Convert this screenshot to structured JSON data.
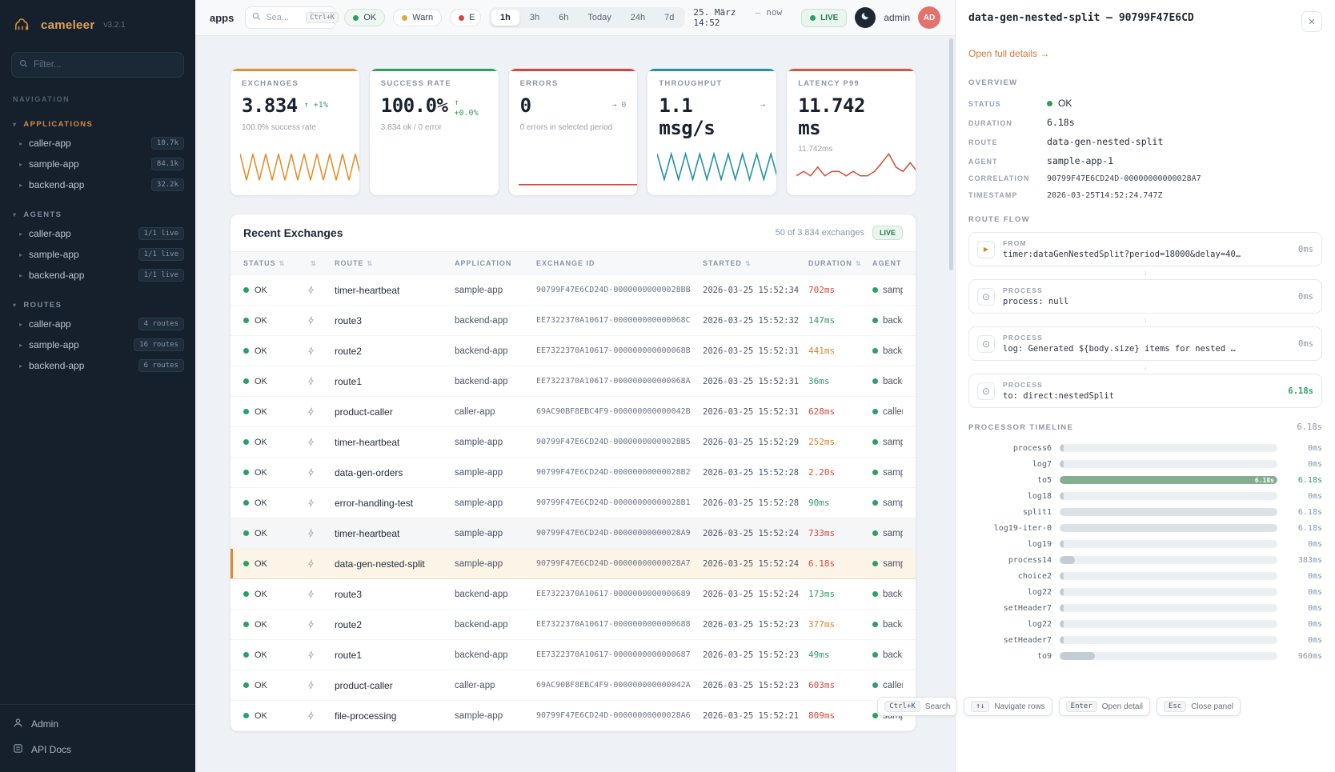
{
  "app": {
    "logo": "cameleer",
    "version": "v3.2.1"
  },
  "colors": {
    "accent": "#d9822b",
    "ok": "#2f9e63",
    "warn": "#dca83f",
    "error": "#d64545",
    "teal": "#2492a5"
  },
  "sidebar": {
    "filter_placeholder": "Filter...",
    "nav_label": "NAVIGATION",
    "applications": {
      "label": "APPLICATIONS",
      "items": [
        {
          "label": "caller-app",
          "badge": "10.7k"
        },
        {
          "label": "sample-app",
          "badge": "84.1k"
        },
        {
          "label": "backend-app",
          "badge": "32.2k"
        }
      ]
    },
    "agents": {
      "label": "AGENTS",
      "items": [
        {
          "label": "caller-app",
          "badge": "1/1 live"
        },
        {
          "label": "sample-app",
          "badge": "1/1 live"
        },
        {
          "label": "backend-app",
          "badge": "1/1 live"
        }
      ]
    },
    "routes": {
      "label": "ROUTES",
      "items": [
        {
          "label": "caller-app",
          "badge": "4 routes"
        },
        {
          "label": "sample-app",
          "badge": "16 routes"
        },
        {
          "label": "backend-app",
          "badge": "6 routes"
        }
      ]
    },
    "footer": {
      "admin": "Admin",
      "api_docs": "API Docs"
    }
  },
  "topbar": {
    "tab": "apps",
    "search_placeholder": "Sea...",
    "search_kbd": "Ctrl+K",
    "status_filters": [
      {
        "label": "OK",
        "tone": "ok"
      },
      {
        "label": "Warn",
        "tone": "warn"
      },
      {
        "label": "E",
        "tone": "error"
      }
    ],
    "ranges": [
      {
        "label": "1h",
        "state": "active"
      },
      {
        "label": "3h"
      },
      {
        "label": "6h"
      },
      {
        "label": "Today"
      },
      {
        "label": "24h"
      },
      {
        "label": "7d"
      }
    ],
    "date": {
      "label": "25. März 14:52",
      "sep": "—",
      "now": "now"
    },
    "live": "LIVE",
    "user": "admin",
    "avatar": "AD"
  },
  "kpis": [
    {
      "label": "EXCHANGES",
      "value": "3.834",
      "delta": "↑ +1%",
      "sub": "100.0% success rate",
      "color": "#e0912f",
      "spark": [
        7,
        1,
        7,
        1,
        7,
        1,
        7,
        1,
        7,
        1,
        7,
        1,
        7,
        1,
        7,
        1,
        7,
        1,
        7,
        1,
        7
      ]
    },
    {
      "label": "SUCCESS RATE",
      "value": "100.0%",
      "delta": "↑",
      "delta2": "+0.0%",
      "sub": "3.834 ok / 0 error",
      "color": "#2f9e63",
      "spark": []
    },
    {
      "label": "ERRORS",
      "value": "0",
      "delta": "→ 0",
      "sub": "0 errors in selected period",
      "color": "#d64545",
      "spark": [
        0,
        0,
        0,
        0,
        0,
        0,
        0,
        0,
        0,
        0,
        0,
        0
      ]
    },
    {
      "label": "THROUGHPUT",
      "value": "1.1 msg/s",
      "delta": "→",
      "sub": "1.1 msg/s",
      "color": "#2492a5",
      "spark": [
        6,
        1,
        6,
        1,
        6,
        1,
        6,
        1,
        6,
        1,
        6,
        1,
        6,
        1,
        6,
        1,
        6,
        1,
        6
      ]
    },
    {
      "label": "LATENCY P99",
      "value": "11.742 ms",
      "sub": "11.742ms",
      "color": "#cc5a3f",
      "spark": [
        2,
        3,
        2,
        4,
        2,
        3,
        3,
        2,
        3,
        2,
        2,
        3,
        5,
        7,
        4,
        3,
        5,
        3,
        4
      ]
    }
  ],
  "exchanges_table": {
    "title": "Recent Exchanges",
    "count": "50 of 3.834 exchanges",
    "live": "LIVE",
    "columns": [
      {
        "label": "STATUS",
        "sort": "sortable"
      },
      {
        "label": "",
        "sort": "sortable"
      },
      {
        "label": "ROUTE",
        "sort": "sortable"
      },
      {
        "label": "APPLICATION"
      },
      {
        "label": "EXCHANGE ID"
      },
      {
        "label": "STARTED",
        "sort": "sortable"
      },
      {
        "label": "DURATION",
        "sort": "sortable"
      },
      {
        "label": "AGENT",
        "sort": "sortable"
      }
    ],
    "rows": [
      {
        "status": "OK",
        "route": "timer-heartbeat",
        "app": "sample-app",
        "id": "90799F47E6CD24D-00000000000028BB",
        "started": "2026-03-25 15:52:34",
        "dur": "702ms",
        "tone": "red",
        "agent": "sample",
        "state": ""
      },
      {
        "status": "OK",
        "route": "route3",
        "app": "backend-app",
        "id": "EE7322370A10617-000000000000068C",
        "started": "2026-03-25 15:52:32",
        "dur": "147ms",
        "tone": "green",
        "agent": "backen",
        "state": ""
      },
      {
        "status": "OK",
        "route": "route2",
        "app": "backend-app",
        "id": "EE7322370A10617-000000000000068B",
        "started": "2026-03-25 15:52:31",
        "dur": "441ms",
        "tone": "amber",
        "agent": "backen",
        "state": ""
      },
      {
        "status": "OK",
        "route": "route1",
        "app": "backend-app",
        "id": "EE7322370A10617-000000000000068A",
        "started": "2026-03-25 15:52:31",
        "dur": "36ms",
        "tone": "green",
        "agent": "backen",
        "state": ""
      },
      {
        "status": "OK",
        "route": "product-caller",
        "app": "caller-app",
        "id": "69AC90BF8EBC4F9-000000000000042B",
        "started": "2026-03-25 15:52:31",
        "dur": "628ms",
        "tone": "red",
        "agent": "caller",
        "state": ""
      },
      {
        "status": "OK",
        "route": "timer-heartbeat",
        "app": "sample-app",
        "id": "90799F47E6CD24D-00000000000028B5",
        "started": "2026-03-25 15:52:29",
        "dur": "252ms",
        "tone": "amber",
        "agent": "sample",
        "state": ""
      },
      {
        "status": "OK",
        "route": "data-gen-orders",
        "app": "sample-app",
        "id": "90799F47E6CD24D-00000000000028B2",
        "started": "2026-03-25 15:52:28",
        "dur": "2.20s",
        "tone": "red",
        "agent": "sample",
        "state": ""
      },
      {
        "status": "OK",
        "route": "error-handling-test",
        "app": "sample-app",
        "id": "90799F47E6CD24D-00000000000028B1",
        "started": "2026-03-25 15:52:28",
        "dur": "90ms",
        "tone": "green",
        "agent": "sample",
        "state": ""
      },
      {
        "status": "OK",
        "route": "timer-heartbeat",
        "app": "sample-app",
        "id": "90799F47E6CD24D-00000000000028A9",
        "started": "2026-03-25 15:52:24",
        "dur": "733ms",
        "tone": "red",
        "agent": "sample",
        "state": "hover"
      },
      {
        "status": "OK",
        "route": "data-gen-nested-split",
        "app": "sample-app",
        "id": "90799F47E6CD24D-00000000000028A7",
        "started": "2026-03-25 15:52:24",
        "dur": "6.18s",
        "tone": "red",
        "agent": "sample",
        "state": "selected"
      },
      {
        "status": "OK",
        "route": "route3",
        "app": "backend-app",
        "id": "EE7322370A10617-0000000000000689",
        "started": "2026-03-25 15:52:24",
        "dur": "173ms",
        "tone": "green",
        "agent": "backen",
        "state": ""
      },
      {
        "status": "OK",
        "route": "route2",
        "app": "backend-app",
        "id": "EE7322370A10617-0000000000000688",
        "started": "2026-03-25 15:52:23",
        "dur": "377ms",
        "tone": "amber",
        "agent": "backen",
        "state": ""
      },
      {
        "status": "OK",
        "route": "route1",
        "app": "backend-app",
        "id": "EE7322370A10617-0000000000000687",
        "started": "2026-03-25 15:52:23",
        "dur": "49ms",
        "tone": "green",
        "agent": "backen",
        "state": ""
      },
      {
        "status": "OK",
        "route": "product-caller",
        "app": "caller-app",
        "id": "69AC90BF8EBC4F9-000000000000042A",
        "started": "2026-03-25 15:52:23",
        "dur": "603ms",
        "tone": "red",
        "agent": "caller",
        "state": ""
      },
      {
        "status": "OK",
        "route": "file-processing",
        "app": "sample-app",
        "id": "90799F47E6CD24D-00000000000028A6",
        "started": "2026-03-25 15:52:21",
        "dur": "809ms",
        "tone": "red",
        "agent": "sample",
        "state": ""
      }
    ]
  },
  "panel": {
    "title": "data-gen-nested-split — 90799F47E6CD",
    "details_link": "Open full details →",
    "overview": {
      "label": "OVERVIEW",
      "status_key": "STATUS",
      "status_val": "OK",
      "duration_key": "DURATION",
      "duration_val": "6.18s",
      "route_key": "ROUTE",
      "route_val": "data-gen-nested-split",
      "agent_key": "AGENT",
      "agent_val": "sample-app-1",
      "correlation_key": "CORRELATION",
      "correlation_val": "90799F47E6CD24D-00000000000028A7",
      "timestamp_key": "TIMESTAMP",
      "timestamp_val": "2026-03-25T14:52:24.747Z"
    },
    "flow": {
      "label": "ROUTE FLOW",
      "steps": [
        {
          "kind": "FROM",
          "text": "timer:dataGenNestedSplit?period=18000&delay=40…",
          "duration": "0ms",
          "icon": "play"
        },
        {
          "kind": "PROCESS",
          "text": "process: null",
          "duration": "0ms",
          "icon": "gear"
        },
        {
          "kind": "PROCESS",
          "text": "log: Generated ${body.size} items for nested …",
          "duration": "0ms",
          "icon": "gear"
        },
        {
          "kind": "PROCESS",
          "text": "to: direct:nestedSplit",
          "duration": "6.18s",
          "icon": "gear",
          "dur_tone": "green"
        }
      ]
    },
    "timeline": {
      "label": "PROCESSOR TIMELINE",
      "total": "6.18s",
      "rows": [
        {
          "name": "process6",
          "duration": "0ms",
          "pct": 2,
          "variant": "dim"
        },
        {
          "name": "log7",
          "duration": "0ms",
          "pct": 2,
          "variant": "dim"
        },
        {
          "name": "to5",
          "duration": "6.18s",
          "pct": 100,
          "variant": "green",
          "bar_label": "6.18s",
          "dur_tone": "green"
        },
        {
          "name": "log18",
          "duration": "0ms",
          "pct": 2,
          "variant": "dim"
        },
        {
          "name": "split1",
          "duration": "6.18s",
          "pct": 100,
          "variant": "pale"
        },
        {
          "name": "log19-iter-0",
          "duration": "6.18s",
          "pct": 100,
          "variant": "pale"
        },
        {
          "name": "log19",
          "duration": "0ms",
          "pct": 2,
          "variant": "dim"
        },
        {
          "name": "process14",
          "duration": "383ms",
          "pct": 7,
          "variant": "dim"
        },
        {
          "name": "choice2",
          "duration": "0ms",
          "pct": 2,
          "variant": "dim"
        },
        {
          "name": "log22",
          "duration": "0ms",
          "pct": 2,
          "variant": "dim"
        },
        {
          "name": "setHeader7",
          "duration": "0ms",
          "pct": 2,
          "variant": "dim"
        },
        {
          "name": "log22",
          "duration": "0ms",
          "pct": 2,
          "variant": "dim"
        },
        {
          "name": "setHeader7",
          "duration": "0ms",
          "pct": 2,
          "variant": "dim"
        },
        {
          "name": "to9",
          "duration": "960ms",
          "pct": 16,
          "variant": "dim"
        }
      ]
    }
  },
  "hints": [
    {
      "key": "Ctrl+K",
      "label": "Search"
    },
    {
      "key": "↑↓",
      "label": "Navigate rows"
    },
    {
      "key": "Enter",
      "label": "Open detail"
    },
    {
      "key": "Esc",
      "label": "Close panel"
    }
  ]
}
